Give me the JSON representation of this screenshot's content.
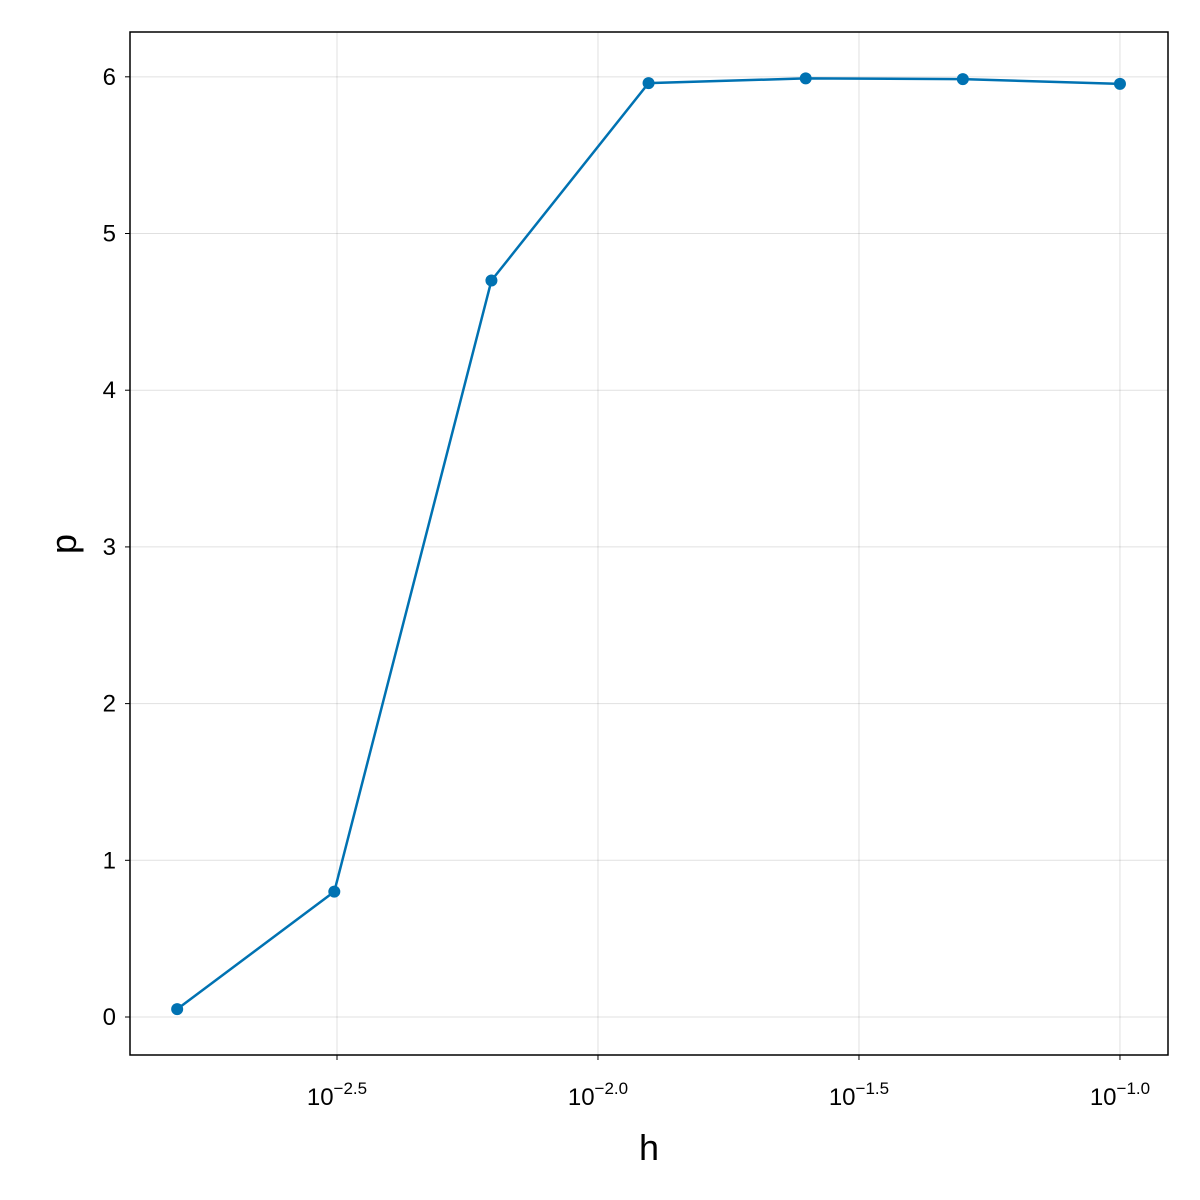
{
  "chart_data": {
    "type": "line",
    "xlabel": "h",
    "ylabel": "p",
    "x": [
      0.0015625,
      0.003125,
      0.00625,
      0.0125,
      0.025,
      0.05,
      0.1
    ],
    "series": [
      {
        "color": "#0072b2",
        "values": [
          0.05,
          0.8,
          4.7,
          5.96,
          5.99,
          5.985,
          5.955
        ]
      }
    ],
    "xscale": "log",
    "xlim": [
      0.001269,
      0.1236
    ],
    "xticks": [
      {
        "value": 0.00316228,
        "label": "10",
        "exponent": "−2.5"
      },
      {
        "value": 0.01,
        "label": "10",
        "exponent": "−2.0"
      },
      {
        "value": 0.0316228,
        "label": "10",
        "exponent": "−1.5"
      },
      {
        "value": 0.1,
        "label": "10",
        "exponent": "−1.0"
      }
    ],
    "ylim": [
      -0.2425,
      6.286
    ],
    "yticks": [
      0,
      1,
      2,
      3,
      4,
      5,
      6
    ],
    "grid": true
  }
}
